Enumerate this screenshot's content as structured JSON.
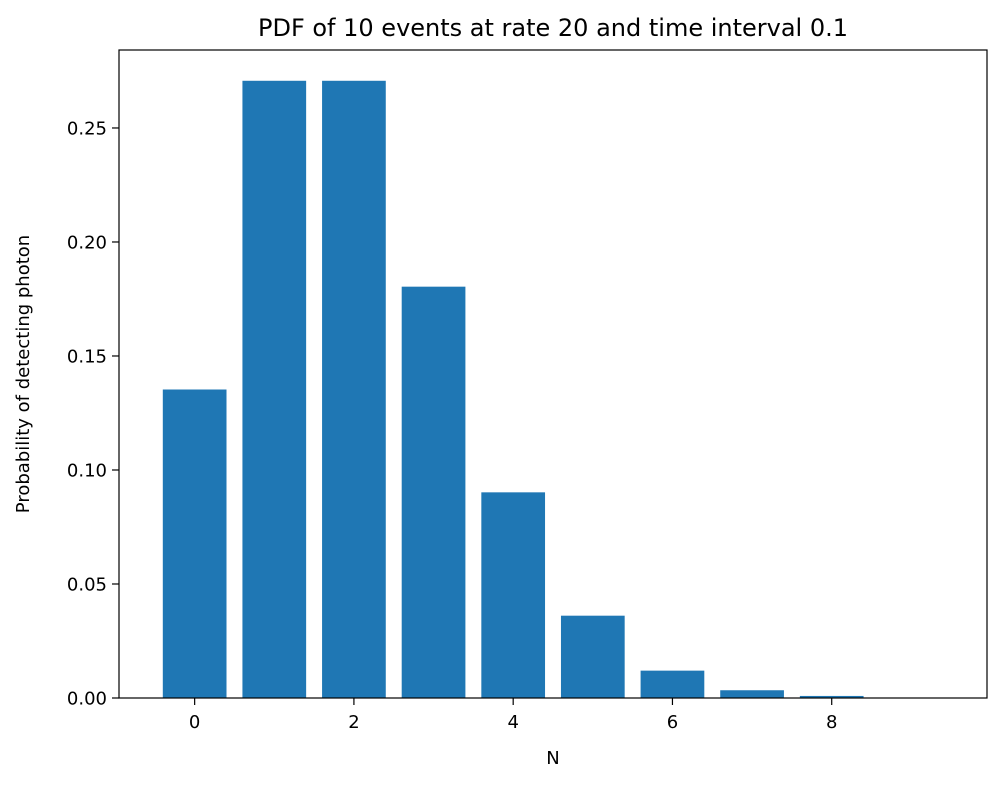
{
  "chart_data": {
    "type": "bar",
    "title": "PDF of 10 events at rate 20 and time interval 0.1",
    "xlabel": "N",
    "ylabel": "Probability of detecting photon",
    "categories": [
      0,
      1,
      2,
      3,
      4,
      5,
      6,
      7,
      8,
      9
    ],
    "values": [
      0.1353,
      0.2707,
      0.2707,
      0.1804,
      0.0902,
      0.0361,
      0.012,
      0.0034,
      0.0009,
      0.0002
    ],
    "xlim": [
      -0.95,
      9.95
    ],
    "ylim": [
      0,
      0.2842
    ],
    "xticks": [
      0,
      2,
      4,
      6,
      8
    ],
    "xtick_labels": [
      "0",
      "2",
      "4",
      "6",
      "8"
    ],
    "yticks": [
      0.0,
      0.05,
      0.1,
      0.15,
      0.2,
      0.25
    ],
    "ytick_labels": [
      "0.00",
      "0.05",
      "0.10",
      "0.15",
      "0.20",
      "0.25"
    ],
    "bar_color": "#1f77b4",
    "grid": false,
    "legend": false
  }
}
